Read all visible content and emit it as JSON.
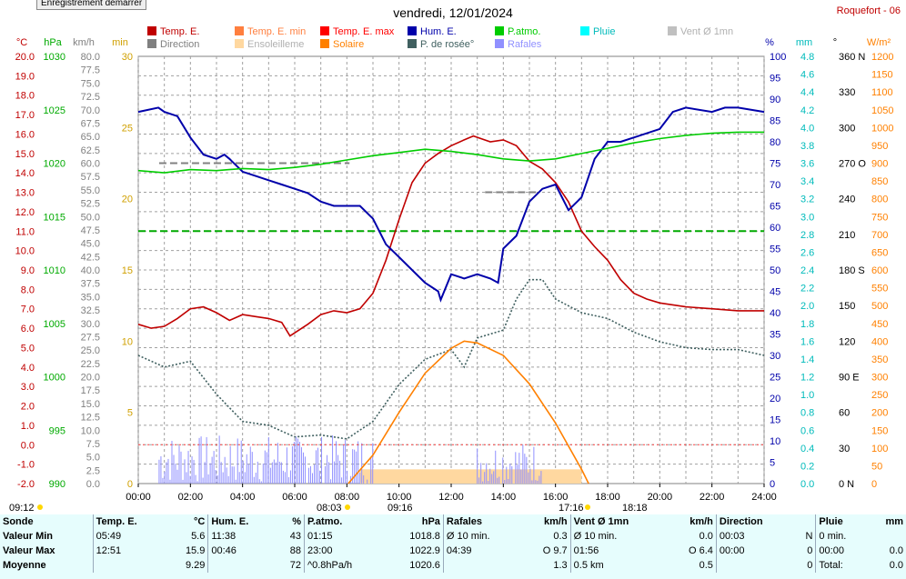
{
  "header": {
    "recording_button": "Enregistrement démarrer",
    "date_title": "vendredi, 12/01/2024",
    "station": "Roquefort - 06"
  },
  "units": {
    "c": "°C",
    "hpa": "hPa",
    "kmh": "km/h",
    "min": "min",
    "pct": "%",
    "mm": "mm",
    "deg": "°",
    "wm2": "W/m²"
  },
  "legend": [
    {
      "label": "Temp. E.",
      "color": "#c00000",
      "active": true
    },
    {
      "label": "Temp. E. min",
      "color": "#ff7f3f",
      "active": true
    },
    {
      "label": "Temp. E. max",
      "color": "#ff0000",
      "active": true
    },
    {
      "label": "Hum. E.",
      "color": "#0000aa",
      "active": true
    },
    {
      "label": "P.atmo.",
      "color": "#00cc00",
      "active": true
    },
    {
      "label": "Pluie",
      "color": "#00ffff",
      "active": true
    },
    {
      "label": "Vent Ø 1mn",
      "color": "#c0c0c0",
      "active": false
    },
    {
      "label": "Direction",
      "color": "#808080",
      "active": true
    },
    {
      "label": "Ensoleilleme",
      "color": "#ffd8a0",
      "active": false
    },
    {
      "label": "Solaire",
      "color": "#ff8000",
      "active": true
    },
    {
      "label": "P. de rosée°",
      "color": "#406060",
      "active": true
    },
    {
      "label": "Rafales",
      "color": "#9090ff",
      "active": true
    }
  ],
  "time_markers": {
    "start_left": "09:12",
    "sunrise": "08:03",
    "sun_mid": "09:16",
    "sunset": "17:16",
    "end": "18:18"
  },
  "chart_data": {
    "type": "line",
    "title": "vendredi, 12/01/2024",
    "x_ticks": [
      "00:00",
      "02:00",
      "04:00",
      "06:00",
      "08:00",
      "10:00",
      "12:00",
      "14:00",
      "16:00",
      "18:00",
      "20:00",
      "22:00",
      "24:00"
    ],
    "x_range_hours": [
      0,
      24
    ],
    "grid": true,
    "axes": {
      "temp_c": {
        "range": [
          -2,
          20
        ],
        "ticks": [
          "20.0",
          "19.0",
          "18.0",
          "17.0",
          "16.0",
          "15.0",
          "14.0",
          "13.0",
          "12.0",
          "11.0",
          "10.0",
          "9.0",
          "8.0",
          "7.0",
          "6.0",
          "5.0",
          "4.0",
          "3.0",
          "2.0",
          "1.0",
          "0.0",
          "-1.0",
          "-2.0"
        ]
      },
      "pressure_hpa": {
        "range": [
          990,
          1030
        ],
        "ticks": [
          "1030",
          "1025",
          "1020",
          "1015",
          "1010",
          "1005",
          "1000",
          "995",
          "990"
        ]
      },
      "wind_kmh": {
        "range": [
          0,
          80
        ],
        "ticks": [
          "80.0",
          "77.5",
          "75.0",
          "72.5",
          "70.0",
          "67.5",
          "65.0",
          "62.5",
          "60.0",
          "57.5",
          "55.0",
          "52.5",
          "50.0",
          "47.5",
          "45.0",
          "42.5",
          "40.0",
          "37.5",
          "35.0",
          "32.5",
          "30.0",
          "27.5",
          "25.0",
          "22.5",
          "20.0",
          "17.5",
          "15.0",
          "12.5",
          "10.0",
          "7.5",
          "5.0",
          "2.5",
          "0.0"
        ]
      },
      "sun_min": {
        "range": [
          0,
          30
        ],
        "ticks": [
          "30",
          "25",
          "20",
          "15",
          "10",
          "5",
          "0"
        ]
      },
      "humidity_pct": {
        "range": [
          0,
          100
        ],
        "ticks": [
          "100",
          "95",
          "90",
          "85",
          "80",
          "75",
          "70",
          "65",
          "60",
          "55",
          "50",
          "45",
          "40",
          "35",
          "30",
          "25",
          "20",
          "15",
          "10",
          "5",
          "0"
        ]
      },
      "rain_mm": {
        "range": [
          0,
          5
        ],
        "ticks": [
          "4.8",
          "4.6",
          "4.4",
          "4.2",
          "4.0",
          "3.8",
          "3.6",
          "3.4",
          "3.2",
          "3.0",
          "2.8",
          "2.6",
          "2.4",
          "2.2",
          "2.0",
          "1.8",
          "1.6",
          "1.4",
          "1.2",
          "1.0",
          "0.8",
          "0.6",
          "0.4",
          "0.2",
          "0.0"
        ]
      },
      "direction_deg": {
        "range": [
          0,
          360
        ],
        "ticks": [
          "360 N",
          "330",
          "300",
          "270 O",
          "240",
          "210",
          "180 S",
          "150",
          "120",
          "90 E",
          "60",
          "30",
          "0 N"
        ]
      },
      "solar_wm2": {
        "range": [
          0,
          1200
        ],
        "ticks": [
          "1200",
          "1150",
          "1100",
          "1050",
          "1000",
          "950",
          "900",
          "850",
          "800",
          "750",
          "700",
          "650",
          "600",
          "550",
          "500",
          "450",
          "400",
          "350",
          "300",
          "250",
          "200",
          "150",
          "100",
          "50",
          "0"
        ]
      }
    },
    "series": [
      {
        "name": "Temp. E.",
        "axis": "temp_c",
        "color": "#c00000",
        "points": [
          [
            0,
            6.2
          ],
          [
            0.5,
            6.0
          ],
          [
            1,
            6.1
          ],
          [
            1.5,
            6.5
          ],
          [
            2,
            7.0
          ],
          [
            2.5,
            7.1
          ],
          [
            3,
            6.8
          ],
          [
            3.5,
            6.4
          ],
          [
            4,
            6.7
          ],
          [
            4.5,
            6.6
          ],
          [
            5,
            6.5
          ],
          [
            5.5,
            6.3
          ],
          [
            5.82,
            5.6
          ],
          [
            6.5,
            6.2
          ],
          [
            7,
            6.7
          ],
          [
            7.5,
            6.9
          ],
          [
            8,
            6.8
          ],
          [
            8.5,
            7.0
          ],
          [
            9,
            7.8
          ],
          [
            9.5,
            9.5
          ],
          [
            10,
            11.6
          ],
          [
            10.5,
            13.5
          ],
          [
            11,
            14.5
          ],
          [
            11.5,
            15.0
          ],
          [
            12,
            15.4
          ],
          [
            12.5,
            15.7
          ],
          [
            12.85,
            15.9
          ],
          [
            13.5,
            15.6
          ],
          [
            14,
            15.7
          ],
          [
            14.5,
            15.4
          ],
          [
            15,
            14.6
          ],
          [
            15.5,
            14.2
          ],
          [
            16,
            13.5
          ],
          [
            16.5,
            12.5
          ],
          [
            17,
            11.0
          ],
          [
            17.5,
            10.2
          ],
          [
            18,
            9.5
          ],
          [
            18.5,
            8.5
          ],
          [
            19,
            7.8
          ],
          [
            19.5,
            7.5
          ],
          [
            20,
            7.3
          ],
          [
            21,
            7.1
          ],
          [
            22,
            7.0
          ],
          [
            23,
            6.9
          ],
          [
            24,
            6.9
          ]
        ]
      },
      {
        "name": "Hum. E.",
        "axis": "humidity_pct",
        "color": "#0000aa",
        "points": [
          [
            0,
            87
          ],
          [
            0.77,
            88
          ],
          [
            1,
            87
          ],
          [
            1.5,
            86
          ],
          [
            2,
            81
          ],
          [
            2.5,
            77
          ],
          [
            3,
            76
          ],
          [
            3.3,
            77
          ],
          [
            3.5,
            76
          ],
          [
            4,
            73
          ],
          [
            4.5,
            72
          ],
          [
            5,
            71
          ],
          [
            5.5,
            70
          ],
          [
            6,
            69
          ],
          [
            6.5,
            68
          ],
          [
            7,
            66
          ],
          [
            7.5,
            65
          ],
          [
            8,
            65
          ],
          [
            8.5,
            65
          ],
          [
            9,
            62
          ],
          [
            9.5,
            56
          ],
          [
            10,
            53
          ],
          [
            10.5,
            50
          ],
          [
            11,
            47
          ],
          [
            11.5,
            45
          ],
          [
            11.6,
            43
          ],
          [
            12,
            49
          ],
          [
            12.5,
            48
          ],
          [
            13,
            49
          ],
          [
            13.5,
            48
          ],
          [
            13.8,
            47
          ],
          [
            14,
            55
          ],
          [
            14.5,
            58
          ],
          [
            15,
            66
          ],
          [
            15.5,
            69
          ],
          [
            16,
            70
          ],
          [
            16.5,
            64
          ],
          [
            17,
            67
          ],
          [
            17.5,
            76
          ],
          [
            18,
            80
          ],
          [
            18.5,
            80
          ],
          [
            19,
            81
          ],
          [
            20,
            83
          ],
          [
            20.5,
            87
          ],
          [
            21,
            88
          ],
          [
            22,
            87
          ],
          [
            22.5,
            88
          ],
          [
            23,
            88
          ],
          [
            24,
            87
          ]
        ]
      },
      {
        "name": "P.atmo.",
        "axis": "pressure_hpa",
        "color": "#00cc00",
        "points": [
          [
            0,
            1019.3
          ],
          [
            1,
            1019.1
          ],
          [
            2,
            1019.4
          ],
          [
            3,
            1019.3
          ],
          [
            4,
            1019.5
          ],
          [
            5,
            1019.4
          ],
          [
            6,
            1019.6
          ],
          [
            7,
            1019.9
          ],
          [
            8,
            1020.3
          ],
          [
            9,
            1020.7
          ],
          [
            10,
            1021.0
          ],
          [
            11,
            1021.3
          ],
          [
            12,
            1021.1
          ],
          [
            13,
            1020.8
          ],
          [
            14,
            1020.4
          ],
          [
            15,
            1020.2
          ],
          [
            16,
            1020.4
          ],
          [
            17,
            1020.9
          ],
          [
            18,
            1021.4
          ],
          [
            19,
            1021.9
          ],
          [
            20,
            1022.3
          ],
          [
            21,
            1022.6
          ],
          [
            22,
            1022.8
          ],
          [
            23,
            1022.9
          ],
          [
            24,
            1022.9
          ]
        ]
      },
      {
        "name": "P. de rosée°",
        "axis": "temp_c",
        "color": "#406060",
        "points": [
          [
            0,
            4.6
          ],
          [
            1,
            4.0
          ],
          [
            2,
            4.3
          ],
          [
            3,
            2.6
          ],
          [
            4,
            1.2
          ],
          [
            5,
            1.0
          ],
          [
            6,
            0.4
          ],
          [
            7,
            0.5
          ],
          [
            8,
            0.3
          ],
          [
            9,
            1.2
          ],
          [
            10,
            3.1
          ],
          [
            11,
            4.4
          ],
          [
            12,
            4.9
          ],
          [
            12.5,
            4.0
          ],
          [
            13,
            5.5
          ],
          [
            14,
            5.9
          ],
          [
            14.5,
            7.5
          ],
          [
            15,
            8.5
          ],
          [
            15.5,
            8.5
          ],
          [
            16,
            7.5
          ],
          [
            17,
            6.8
          ],
          [
            18,
            6.5
          ],
          [
            19,
            5.8
          ],
          [
            20,
            5.3
          ],
          [
            21,
            5.0
          ],
          [
            22,
            4.9
          ],
          [
            23,
            4.9
          ],
          [
            24,
            4.6
          ]
        ]
      },
      {
        "name": "Solaire",
        "axis": "solar_wm2",
        "color": "#ff8000",
        "points": [
          [
            8.05,
            0
          ],
          [
            9,
            80
          ],
          [
            10,
            200
          ],
          [
            11,
            310
          ],
          [
            12,
            380
          ],
          [
            12.5,
            400
          ],
          [
            13,
            395
          ],
          [
            14,
            360
          ],
          [
            15,
            280
          ],
          [
            16,
            170
          ],
          [
            17,
            40
          ],
          [
            17.27,
            0
          ]
        ]
      }
    ],
    "reference_lines": [
      {
        "label": "Temp. E. max",
        "axis": "temp_c",
        "value": 14.5,
        "from": 0.8,
        "to": 8.1,
        "color": "#808080",
        "style": "dash"
      },
      {
        "label": "Temp. E. min",
        "axis": "temp_c",
        "value": 13.0,
        "from": 13.3,
        "to": 15.3,
        "color": "#808080",
        "style": "dash"
      },
      {
        "label": "",
        "axis": "temp_c",
        "value": 11.0,
        "from": 0,
        "to": 24,
        "color": "#00aa00",
        "style": "dash"
      },
      {
        "label": "",
        "axis": "temp_c",
        "value": 0.0,
        "from": 0,
        "to": 24,
        "color": "#ff4040",
        "style": "dot"
      }
    ],
    "sunshine_bar": {
      "axis": "sun_min",
      "from": 8.5,
      "to": 17.0,
      "value": 1.0,
      "color": "#ffd8a0"
    },
    "gust_bars": {
      "axis": "wind_kmh",
      "color": "#9090ff",
      "clusters": [
        [
          0.8,
          9.0,
          7
        ],
        [
          13.0,
          15.5,
          6
        ]
      ]
    }
  },
  "summary": {
    "columns": [
      {
        "head": "Sonde"
      },
      {
        "head": "Temp. E.",
        "unit": "°C"
      },
      {
        "head": "Hum. E.",
        "unit": "%"
      },
      {
        "head": "P.atmo.",
        "unit": "hPa"
      },
      {
        "head": "Rafales",
        "unit": "km/h"
      },
      {
        "head": "Vent Ø 1mn",
        "unit": "km/h"
      },
      {
        "head": "Direction"
      },
      {
        "head": "Pluie",
        "unit": "mm"
      }
    ],
    "rows": [
      {
        "label": "Valeur Min",
        "cells": [
          [
            "05:49",
            "5.6"
          ],
          [
            "11:38",
            "43"
          ],
          [
            "01:15",
            "1018.8"
          ],
          [
            "Ø 10 min.",
            "0.3"
          ],
          [
            "Ø 10 min.",
            "0.0"
          ],
          [
            "00:03",
            "N"
          ],
          [
            "0 min.",
            ""
          ]
        ]
      },
      {
        "label": "Valeur Max",
        "cells": [
          [
            "12:51",
            "15.9"
          ],
          [
            "00:46",
            "88"
          ],
          [
            "23:00",
            "1022.9"
          ],
          [
            "04:39",
            "O 9.7"
          ],
          [
            "01:56",
            "O 6.4"
          ],
          [
            "00:00",
            "0"
          ],
          [
            "00:00",
            "0.0"
          ]
        ]
      },
      {
        "label": "Moyenne",
        "cells": [
          [
            "",
            "9.29"
          ],
          [
            "",
            "72"
          ],
          [
            "^0.8hPa/h",
            "1020.6"
          ],
          [
            "",
            "1.3"
          ],
          [
            "0.5 km",
            "0.5"
          ],
          [
            "",
            "0"
          ],
          [
            "Total:",
            "0.0"
          ]
        ]
      }
    ]
  }
}
